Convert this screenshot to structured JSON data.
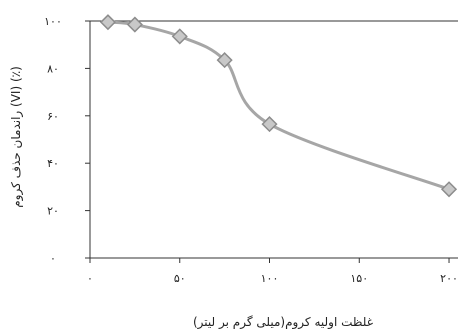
{
  "chart_data": {
    "type": "line",
    "title": "",
    "xlabel": "غلظت اولیه کروم(میلی گرم بر لیتر)",
    "ylabel": "راندمان حذف کروم (VI) (٪)",
    "x_ticks": [
      {
        "value": 0,
        "label": "۰"
      },
      {
        "value": 50,
        "label": "۵۰"
      },
      {
        "value": 100,
        "label": "۱۰۰"
      },
      {
        "value": 150,
        "label": "۱۵۰"
      },
      {
        "value": 200,
        "label": "۲۰۰"
      }
    ],
    "y_ticks": [
      {
        "value": 0,
        "label": "۰"
      },
      {
        "value": 20,
        "label": "۲۰"
      },
      {
        "value": 40,
        "label": "۴۰"
      },
      {
        "value": 60,
        "label": "۶۰"
      },
      {
        "value": 80,
        "label": "۸۰"
      },
      {
        "value": 100,
        "label": "۱۰۰"
      }
    ],
    "xlim": [
      0,
      205
    ],
    "ylim": [
      0,
      100
    ],
    "grid": false,
    "series": [
      {
        "color": "#a6a6a6",
        "marker": "diamond",
        "x": [
          10,
          25,
          50,
          75,
          100,
          200
        ],
        "y": [
          99.5,
          98.5,
          93.5,
          83.5,
          56.5,
          29
        ]
      }
    ]
  }
}
